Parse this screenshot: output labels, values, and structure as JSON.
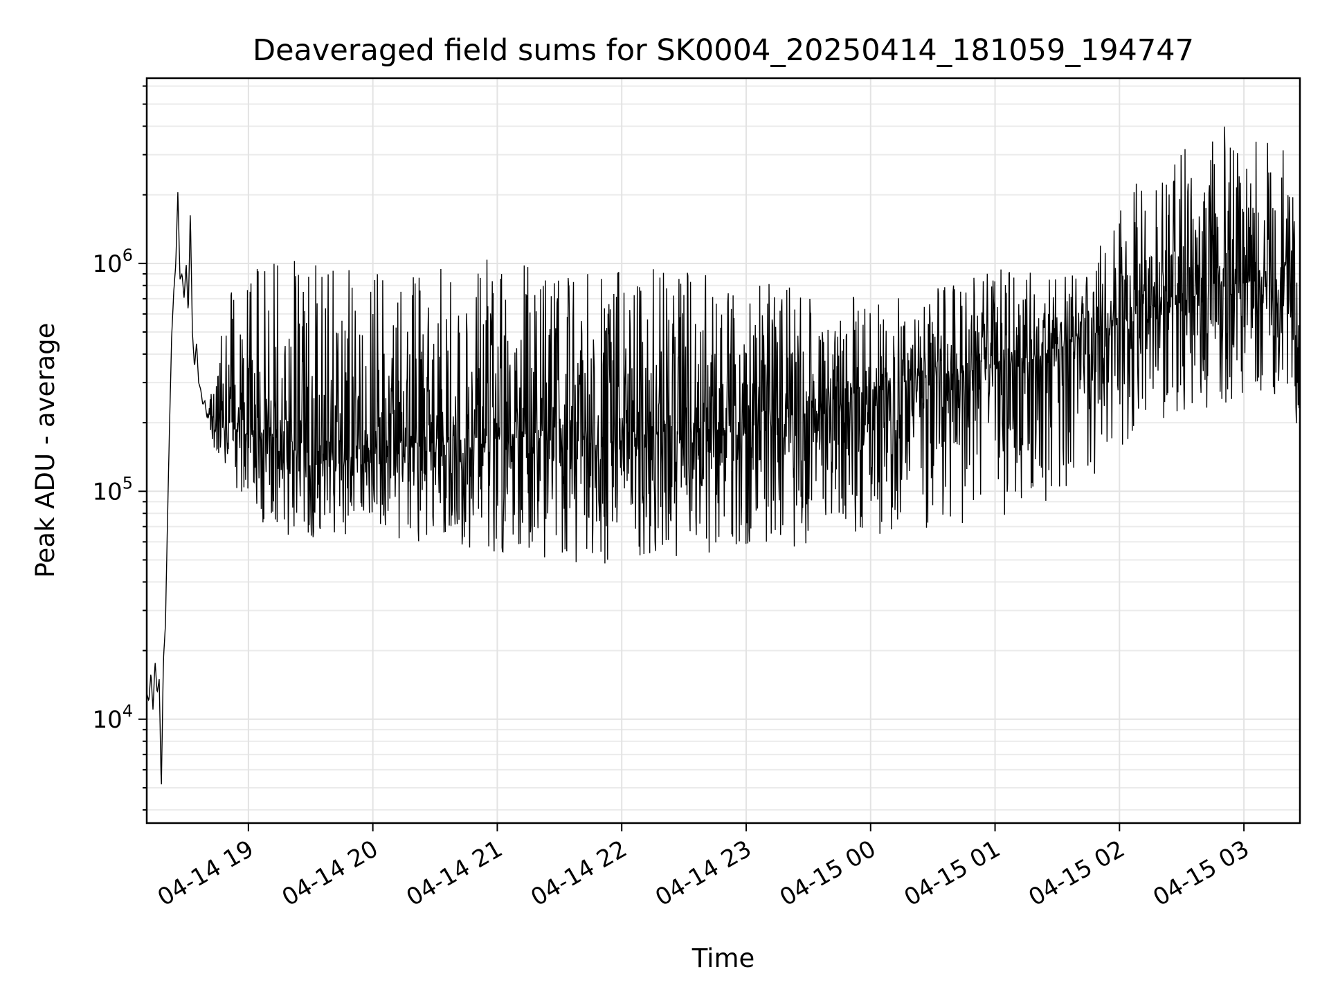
{
  "chart_data": {
    "type": "line",
    "title": "Deaveraged field sums for SK0004_20250414_181059_194747",
    "xlabel": "Time",
    "ylabel": "Peak ADU - average",
    "yscale": "log",
    "xlim": [
      "2025-04-14 18:10:59",
      "2025-04-15 03:27:00"
    ],
    "ylim": [
      3500,
      6500000
    ],
    "grid": "on (major and minor)",
    "legend": "none",
    "line_color": "#000000",
    "x_ticks": [
      {
        "value": "2025-04-14 19:00",
        "label": "04-14 19"
      },
      {
        "value": "2025-04-14 20:00",
        "label": "04-14 20"
      },
      {
        "value": "2025-04-14 21:00",
        "label": "04-14 21"
      },
      {
        "value": "2025-04-14 22:00",
        "label": "04-14 22"
      },
      {
        "value": "2025-04-14 23:00",
        "label": "04-14 23"
      },
      {
        "value": "2025-04-15 00:00",
        "label": "04-15 00"
      },
      {
        "value": "2025-04-15 01:00",
        "label": "04-15 01"
      },
      {
        "value": "2025-04-15 02:00",
        "label": "04-15 02"
      },
      {
        "value": "2025-04-15 03:00",
        "label": "04-15 03"
      }
    ],
    "y_ticks": [
      {
        "value": 10000,
        "base": "10",
        "exp": "4"
      },
      {
        "value": 100000,
        "base": "10",
        "exp": "5"
      },
      {
        "value": 1000000,
        "base": "10",
        "exp": "6"
      }
    ],
    "series": [
      {
        "x": [
          "2025-04-14 18:11",
          "2025-04-14 18:12",
          "2025-04-14 18:13",
          "2025-04-14 18:14",
          "2025-04-14 18:15",
          "2025-04-14 18:16",
          "2025-04-14 18:17",
          "2025-04-14 18:18",
          "2025-04-14 18:19",
          "2025-04-14 18:20",
          "2025-04-14 18:21",
          "2025-04-14 18:22",
          "2025-04-14 18:23",
          "2025-04-14 18:24",
          "2025-04-14 18:25",
          "2025-04-14 18:26",
          "2025-04-14 18:27",
          "2025-04-14 18:28",
          "2025-04-14 18:29",
          "2025-04-14 18:30",
          "2025-04-14 18:31",
          "2025-04-14 18:32",
          "2025-04-14 18:33",
          "2025-04-14 18:34",
          "2025-04-14 18:35",
          "2025-04-14 18:36",
          "2025-04-14 18:37",
          "2025-04-14 18:38",
          "2025-04-14 18:39",
          "2025-04-14 18:40",
          "2025-04-14 18:42",
          "2025-04-14 18:45",
          "2025-04-14 18:50",
          "2025-04-14 18:55",
          "2025-04-14 19:00",
          "2025-04-14 19:15",
          "2025-04-14 19:30",
          "2025-04-14 19:45",
          "2025-04-14 20:00",
          "2025-04-14 20:15",
          "2025-04-14 20:30",
          "2025-04-14 20:45",
          "2025-04-14 21:00",
          "2025-04-14 21:15",
          "2025-04-14 21:30",
          "2025-04-14 21:45",
          "2025-04-14 22:00",
          "2025-04-14 22:15",
          "2025-04-14 22:30",
          "2025-04-14 22:45",
          "2025-04-14 23:00",
          "2025-04-14 23:15",
          "2025-04-14 23:30",
          "2025-04-14 23:45",
          "2025-04-15 00:00",
          "2025-04-15 00:15",
          "2025-04-15 00:30",
          "2025-04-15 00:45",
          "2025-04-15 01:00",
          "2025-04-15 01:15",
          "2025-04-15 01:30",
          "2025-04-15 01:45",
          "2025-04-15 02:00",
          "2025-04-15 02:15",
          "2025-04-15 02:30",
          "2025-04-15 02:45",
          "2025-04-15 03:00",
          "2025-04-15 03:15",
          "2025-04-15 03:25",
          "2025-04-15 03:27"
        ],
        "y": [
          13000,
          12000,
          16000,
          11000,
          18000,
          13000,
          15000,
          4800,
          18000,
          26000,
          75000,
          200000,
          480000,
          750000,
          1000000,
          2100000,
          850000,
          900000,
          700000,
          1000000,
          600000,
          1700000,
          500000,
          350000,
          450000,
          300000,
          280000,
          240000,
          250000,
          210000,
          230000,
          200000,
          190000,
          185000,
          180000,
          170000,
          160000,
          155000,
          150000,
          165000,
          160000,
          170000,
          175000,
          180000,
          170000,
          165000,
          180000,
          175000,
          185000,
          190000,
          200000,
          210000,
          220000,
          240000,
          270000,
          300000,
          320000,
          330000,
          350000,
          370000,
          420000,
          480000,
          550000,
          650000,
          720000,
          780000,
          820000,
          850000,
          700000,
          450000
        ],
        "max": [
          13000,
          12000,
          16000,
          11000,
          18000,
          13000,
          15000,
          4800,
          18000,
          26000,
          75000,
          200000,
          480000,
          750000,
          1000000,
          2100000,
          850000,
          900000,
          700000,
          1000000,
          600000,
          1700000,
          500000,
          350000,
          450000,
          300000,
          280000,
          240000,
          250000,
          210000,
          300000,
          400000,
          700000,
          950000,
          1100000,
          1100000,
          1050000,
          1000000,
          980000,
          950000,
          1000000,
          1050000,
          1050000,
          1000000,
          990000,
          980000,
          950000,
          960000,
          980000,
          900000,
          850000,
          820000,
          780000,
          750000,
          700000,
          720000,
          800000,
          850000,
          950000,
          1000000,
          900000,
          950000,
          1800000,
          2800000,
          3200000,
          3800000,
          4500000,
          3500000,
          2800000,
          900000
        ],
        "min": [
          13000,
          12000,
          16000,
          11000,
          18000,
          13000,
          15000,
          4800,
          18000,
          26000,
          75000,
          200000,
          480000,
          750000,
          1000000,
          2100000,
          850000,
          900000,
          700000,
          1000000,
          600000,
          1700000,
          500000,
          350000,
          450000,
          300000,
          280000,
          240000,
          250000,
          210000,
          160000,
          140000,
          110000,
          95000,
          80000,
          65000,
          60000,
          62000,
          65000,
          60000,
          58000,
          55000,
          52000,
          50000,
          48000,
          47000,
          46000,
          48000,
          50000,
          50000,
          52000,
          55000,
          58000,
          60000,
          62000,
          65000,
          70000,
          72000,
          75000,
          80000,
          90000,
          110000,
          140000,
          170000,
          200000,
          230000,
          250000,
          260000,
          120000,
          120000
        ]
      }
    ]
  }
}
